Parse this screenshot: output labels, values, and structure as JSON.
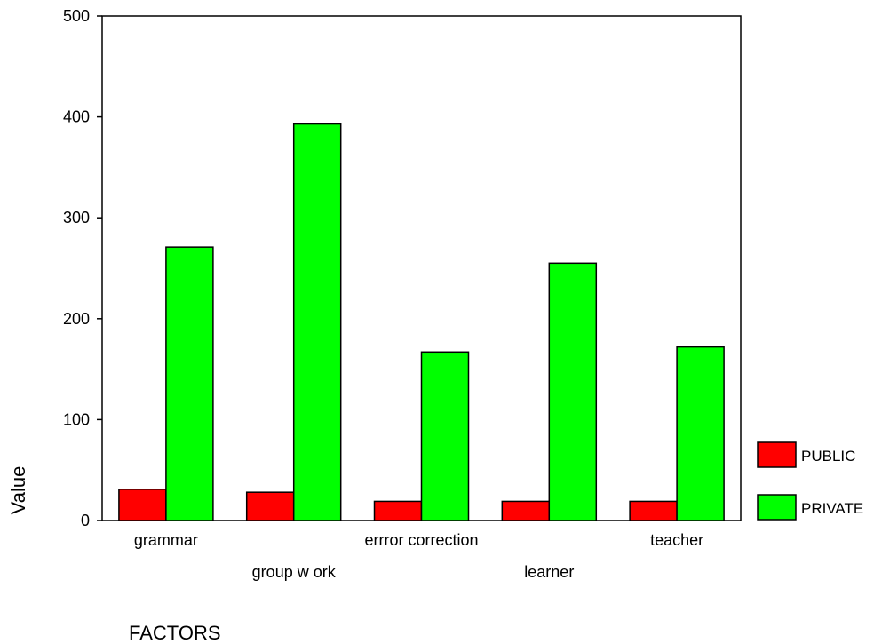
{
  "chart_data": {
    "type": "bar",
    "categories": [
      "grammar",
      "group w ork",
      "errror correction",
      "learner",
      "teacher"
    ],
    "series": [
      {
        "name": "PUBLIC",
        "color": "#ff0000",
        "values": [
          31,
          28,
          19,
          19,
          19
        ]
      },
      {
        "name": "PRIVATE",
        "color": "#00ff00",
        "values": [
          271,
          393,
          167,
          255,
          172
        ]
      }
    ],
    "xlabel": "FACTORS",
    "ylabel": "Value",
    "ylim": [
      0,
      500
    ],
    "yticks": [
      "0",
      "100",
      "200",
      "300",
      "400",
      "500"
    ],
    "grid": false,
    "legend_position": "right"
  }
}
